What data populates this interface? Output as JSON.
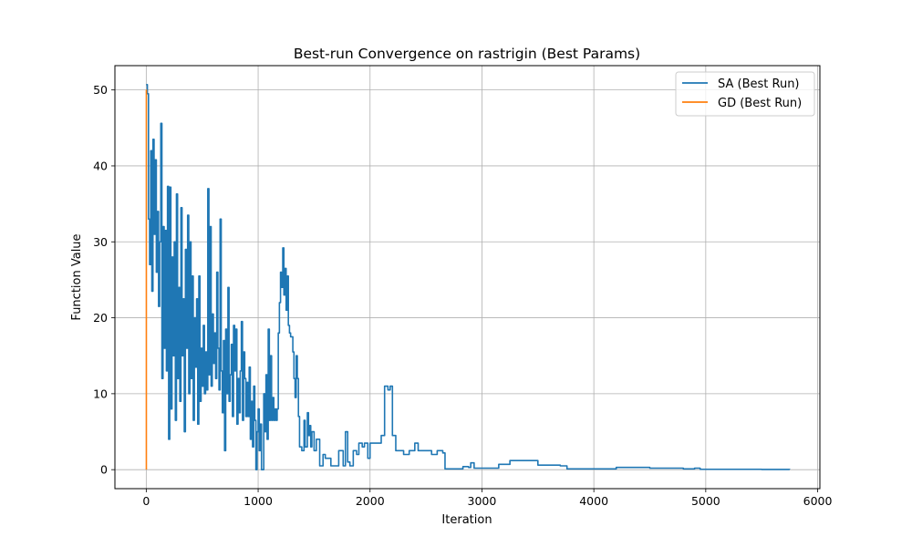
{
  "chart_data": {
    "type": "line",
    "title": "Best-run Convergence on rastrigin (Best Params)",
    "xlabel": "Iteration",
    "ylabel": "Function Value",
    "xlim": [
      -280,
      6020
    ],
    "ylim": [
      -2.5,
      53.2
    ],
    "xticks": [
      0,
      1000,
      2000,
      3000,
      4000,
      5000,
      6000
    ],
    "yticks": [
      0,
      10,
      20,
      30,
      40,
      50
    ],
    "grid": true,
    "legend_position": "top-right",
    "series": [
      {
        "name": "SA (Best Run)",
        "color": "#1f77b4",
        "points": [
          [
            0,
            50.7
          ],
          [
            10,
            49.5
          ],
          [
            20,
            33
          ],
          [
            30,
            27
          ],
          [
            40,
            42
          ],
          [
            50,
            23.5
          ],
          [
            60,
            43.5
          ],
          [
            70,
            31
          ],
          [
            80,
            40.8
          ],
          [
            90,
            26
          ],
          [
            100,
            34
          ],
          [
            110,
            21.5
          ],
          [
            120,
            30
          ],
          [
            130,
            45.6
          ],
          [
            140,
            12
          ],
          [
            150,
            32
          ],
          [
            160,
            16
          ],
          [
            170,
            31.5
          ],
          [
            180,
            13
          ],
          [
            190,
            37.3
          ],
          [
            200,
            4
          ],
          [
            210,
            37.2
          ],
          [
            220,
            8
          ],
          [
            230,
            28
          ],
          [
            240,
            15
          ],
          [
            250,
            30
          ],
          [
            260,
            6.5
          ],
          [
            270,
            36.3
          ],
          [
            280,
            12
          ],
          [
            290,
            24
          ],
          [
            300,
            9
          ],
          [
            310,
            34.5
          ],
          [
            320,
            15
          ],
          [
            330,
            22.5
          ],
          [
            340,
            5
          ],
          [
            350,
            29
          ],
          [
            360,
            16
          ],
          [
            370,
            33.5
          ],
          [
            380,
            10
          ],
          [
            390,
            30
          ],
          [
            400,
            12
          ],
          [
            410,
            25.5
          ],
          [
            420,
            6.5
          ],
          [
            430,
            20
          ],
          [
            440,
            13.5
          ],
          [
            450,
            22.5
          ],
          [
            460,
            6
          ],
          [
            470,
            25.5
          ],
          [
            480,
            9
          ],
          [
            490,
            16
          ],
          [
            500,
            11
          ],
          [
            510,
            19
          ],
          [
            520,
            10
          ],
          [
            530,
            15.5
          ],
          [
            540,
            10.5
          ],
          [
            550,
            37
          ],
          [
            560,
            12.5
          ],
          [
            570,
            32
          ],
          [
            580,
            11
          ],
          [
            590,
            20.5
          ],
          [
            600,
            14
          ],
          [
            610,
            18
          ],
          [
            620,
            12
          ],
          [
            630,
            26
          ],
          [
            640,
            16
          ],
          [
            650,
            10.5
          ],
          [
            660,
            33
          ],
          [
            670,
            13
          ],
          [
            680,
            7.5
          ],
          [
            690,
            17
          ],
          [
            700,
            2.5
          ],
          [
            710,
            18.5
          ],
          [
            720,
            10
          ],
          [
            730,
            24
          ],
          [
            740,
            9
          ],
          [
            750,
            12.5
          ],
          [
            760,
            16.5
          ],
          [
            770,
            7
          ],
          [
            780,
            19
          ],
          [
            790,
            13
          ],
          [
            800,
            18.5
          ],
          [
            810,
            6
          ],
          [
            820,
            12
          ],
          [
            830,
            7.5
          ],
          [
            840,
            13
          ],
          [
            850,
            19.5
          ],
          [
            860,
            6.5
          ],
          [
            870,
            15.5
          ],
          [
            880,
            12
          ],
          [
            890,
            7
          ],
          [
            900,
            11.5
          ],
          [
            910,
            7
          ],
          [
            920,
            13.5
          ],
          [
            930,
            4
          ],
          [
            940,
            9
          ],
          [
            950,
            3
          ],
          [
            960,
            11
          ],
          [
            970,
            6.5
          ],
          [
            980,
            0
          ],
          [
            990,
            5
          ],
          [
            1000,
            8
          ],
          [
            1010,
            2.5
          ],
          [
            1020,
            6
          ],
          [
            1030,
            0
          ],
          [
            1040,
            0
          ],
          [
            1050,
            10
          ],
          [
            1060,
            5
          ],
          [
            1070,
            12.5
          ],
          [
            1080,
            4
          ],
          [
            1090,
            18.5
          ],
          [
            1100,
            6.5
          ],
          [
            1110,
            15
          ],
          [
            1120,
            6.5
          ],
          [
            1130,
            9.5
          ],
          [
            1140,
            6.5
          ],
          [
            1150,
            8
          ],
          [
            1160,
            6.5
          ],
          [
            1170,
            8
          ],
          [
            1180,
            18
          ],
          [
            1190,
            22
          ],
          [
            1200,
            26
          ],
          [
            1210,
            24
          ],
          [
            1220,
            29.2
          ],
          [
            1230,
            23
          ],
          [
            1240,
            26.5
          ],
          [
            1250,
            21
          ],
          [
            1260,
            25.5
          ],
          [
            1270,
            19
          ],
          [
            1280,
            18
          ],
          [
            1290,
            17.5
          ],
          [
            1300,
            17.5
          ],
          [
            1310,
            15.5
          ],
          [
            1320,
            12
          ],
          [
            1330,
            9.5
          ],
          [
            1340,
            15
          ],
          [
            1350,
            12
          ],
          [
            1360,
            7
          ],
          [
            1370,
            3
          ],
          [
            1390,
            2.5
          ],
          [
            1410,
            6.5
          ],
          [
            1420,
            3
          ],
          [
            1440,
            7.5
          ],
          [
            1450,
            4.5
          ],
          [
            1460,
            5.8
          ],
          [
            1470,
            3
          ],
          [
            1480,
            5
          ],
          [
            1500,
            2.5
          ],
          [
            1520,
            4
          ],
          [
            1550,
            0.5
          ],
          [
            1580,
            2
          ],
          [
            1600,
            1.5
          ],
          [
            1650,
            0.5
          ],
          [
            1700,
            0.5
          ],
          [
            1720,
            2.5
          ],
          [
            1760,
            0.5
          ],
          [
            1780,
            5
          ],
          [
            1800,
            1
          ],
          [
            1820,
            0.5
          ],
          [
            1850,
            2.5
          ],
          [
            1880,
            2
          ],
          [
            1900,
            3.5
          ],
          [
            1930,
            3
          ],
          [
            1950,
            3.5
          ],
          [
            1980,
            1.5
          ],
          [
            2000,
            3.5
          ],
          [
            2050,
            3.5
          ],
          [
            2100,
            4.5
          ],
          [
            2130,
            11
          ],
          [
            2160,
            10.5
          ],
          [
            2180,
            11
          ],
          [
            2200,
            4.5
          ],
          [
            2230,
            2.5
          ],
          [
            2300,
            2
          ],
          [
            2350,
            2.5
          ],
          [
            2400,
            3.5
          ],
          [
            2430,
            2.5
          ],
          [
            2500,
            2.5
          ],
          [
            2550,
            2
          ],
          [
            2600,
            2.5
          ],
          [
            2650,
            2.2
          ],
          [
            2670,
            0.1
          ],
          [
            2800,
            0.1
          ],
          [
            2830,
            0.4
          ],
          [
            2880,
            0.3
          ],
          [
            2900,
            0.9
          ],
          [
            2930,
            0.2
          ],
          [
            3000,
            0.2
          ],
          [
            3100,
            0.2
          ],
          [
            3150,
            0.7
          ],
          [
            3200,
            0.7
          ],
          [
            3250,
            1.2
          ],
          [
            3300,
            1.2
          ],
          [
            3400,
            1.2
          ],
          [
            3500,
            0.6
          ],
          [
            3600,
            0.6
          ],
          [
            3700,
            0.5
          ],
          [
            3760,
            0.1
          ],
          [
            4000,
            0.1
          ],
          [
            4200,
            0.3
          ],
          [
            4500,
            0.2
          ],
          [
            4800,
            0.1
          ],
          [
            4900,
            0.2
          ],
          [
            4950,
            0.05
          ],
          [
            5200,
            0.05
          ],
          [
            5500,
            0.03
          ],
          [
            5750,
            0.02
          ]
        ]
      },
      {
        "name": "GD (Best Run)",
        "color": "#ff7f0e",
        "points": [
          [
            0,
            50.0
          ],
          [
            1,
            0.0
          ]
        ]
      }
    ]
  }
}
